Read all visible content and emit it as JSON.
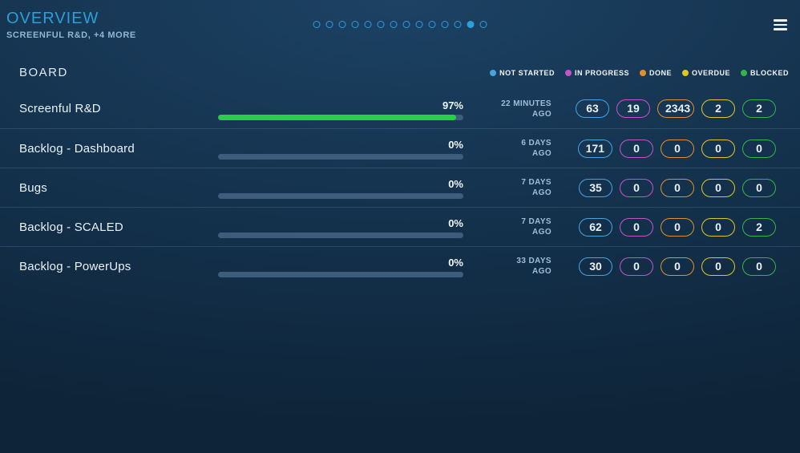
{
  "header": {
    "title": "OVERVIEW",
    "subtitle": "SCREENFUL R&D, +4 MORE",
    "dots": {
      "count": 14,
      "active_index": 12
    }
  },
  "colors": {
    "accent_blue": "#2b9fd8",
    "progress_green": "#27d145",
    "progress_track": "#3e5d7d"
  },
  "board": {
    "title": "BOARD",
    "legend": [
      {
        "key": "not-started",
        "label": "NOT STARTED",
        "color": "#4aa3df"
      },
      {
        "key": "in-progress",
        "label": "IN PROGRESS",
        "color": "#c455c8"
      },
      {
        "key": "done",
        "label": "DONE",
        "color": "#e2902f"
      },
      {
        "key": "overdue",
        "label": "OVERDUE",
        "color": "#ddc922"
      },
      {
        "key": "blocked",
        "label": "BLOCKED",
        "color": "#37b34a"
      }
    ],
    "rows": [
      {
        "name": "Screenful R&D",
        "percent": "97%",
        "percent_value": 97,
        "updated": [
          "22 MINUTES",
          "AGO"
        ],
        "counts": [
          "63",
          "19",
          "2343",
          "2",
          "2"
        ]
      },
      {
        "name": "Backlog - Dashboard",
        "percent": "0%",
        "percent_value": 0,
        "updated": [
          "6 DAYS",
          "AGO"
        ],
        "counts": [
          "171",
          "0",
          "0",
          "0",
          "0"
        ]
      },
      {
        "name": "Bugs",
        "percent": "0%",
        "percent_value": 0,
        "updated": [
          "7 DAYS",
          "AGO"
        ],
        "counts": [
          "35",
          "0",
          "0",
          "0",
          "0"
        ]
      },
      {
        "name": "Backlog - SCALED",
        "percent": "0%",
        "percent_value": 0,
        "updated": [
          "7 DAYS",
          "AGO"
        ],
        "counts": [
          "62",
          "0",
          "0",
          "0",
          "2"
        ]
      },
      {
        "name": "Backlog - PowerUps",
        "percent": "0%",
        "percent_value": 0,
        "updated": [
          "33 DAYS",
          "AGO"
        ],
        "counts": [
          "30",
          "0",
          "0",
          "0",
          "0"
        ]
      }
    ]
  }
}
